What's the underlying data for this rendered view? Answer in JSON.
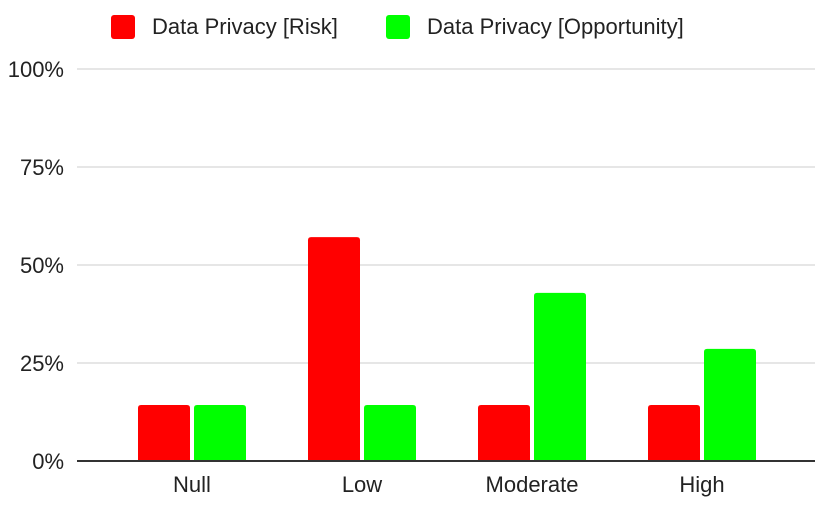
{
  "chart_data": {
    "type": "bar",
    "categories": [
      "Null",
      "Low",
      "Moderate",
      "High"
    ],
    "series": [
      {
        "name": "Data Privacy [Risk]",
        "color": "#ff0000",
        "values": [
          14.3,
          57.1,
          14.3,
          14.3
        ]
      },
      {
        "name": "Data Privacy [Opportunity]",
        "color": "#00ff00",
        "values": [
          14.3,
          14.3,
          42.9,
          28.6
        ]
      }
    ],
    "y_ticks": [
      "0%",
      "25%",
      "50%",
      "75%",
      "100%"
    ],
    "y_tick_values": [
      0,
      25,
      50,
      75,
      100
    ],
    "ylim": [
      0,
      100
    ],
    "grid": true,
    "legend_position": "top",
    "gridline_color": "#cccccc",
    "axis_color": "#333333"
  }
}
